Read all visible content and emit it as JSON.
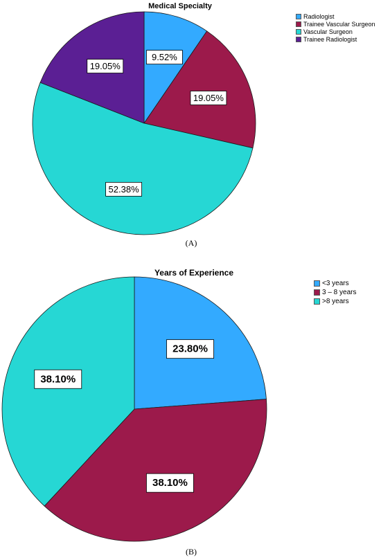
{
  "chart_data": [
    {
      "type": "pie",
      "title": "Medical Specialty",
      "caption": "(A)",
      "legend_position": "top-right",
      "slices": [
        {
          "label": "Radiologist",
          "value": 9.52,
          "value_label": "9.52%",
          "color": "#33aaff"
        },
        {
          "label": "Trainee Vascular Surgeon",
          "value": 19.05,
          "value_label": "19.05%",
          "color": "#9c1a4b"
        },
        {
          "label": "Vascular Surgeon",
          "value": 52.38,
          "value_label": "52.38%",
          "color": "#26d7d4"
        },
        {
          "label": "Trainee Radiologist",
          "value": 19.05,
          "value_label": "19.05%",
          "color": "#5b1f94"
        }
      ]
    },
    {
      "type": "pie",
      "title": "Years of Experience",
      "caption": "(B)",
      "legend_position": "top-right",
      "slices": [
        {
          "label": "<3 years",
          "value": 23.8,
          "value_label": "23.80%",
          "color": "#33aaff"
        },
        {
          "label": "3 – 8 years",
          "value": 38.1,
          "value_label": "38.10%",
          "color": "#9c1a4b"
        },
        {
          "label": ">8 years",
          "value": 38.1,
          "value_label": "38.10%",
          "color": "#26d7d4"
        }
      ]
    }
  ]
}
